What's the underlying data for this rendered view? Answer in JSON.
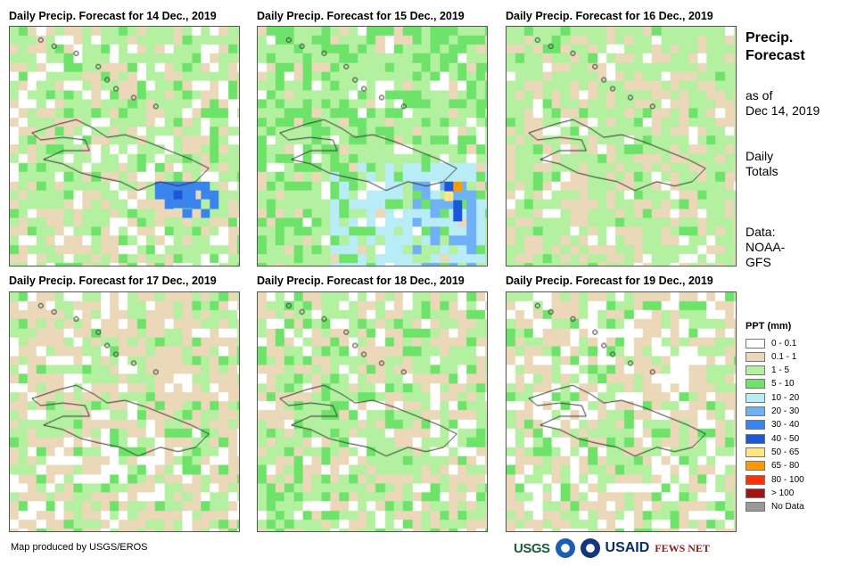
{
  "panels": [
    {
      "title": "Daily Precip. Forecast for 14 Dec., 2019",
      "date": "14 Dec., 2019"
    },
    {
      "title": "Daily Precip. Forecast for 15 Dec., 2019",
      "date": "15 Dec., 2019"
    },
    {
      "title": "Daily Precip. Forecast for 16 Dec., 2019",
      "date": "16 Dec., 2019"
    },
    {
      "title": "Daily Precip. Forecast for 17 Dec., 2019",
      "date": "17 Dec., 2019"
    },
    {
      "title": "Daily Precip. Forecast for 18 Dec., 2019",
      "date": "18 Dec., 2019"
    },
    {
      "title": "Daily Precip. Forecast for 19 Dec., 2019",
      "date": "19 Dec., 2019"
    }
  ],
  "sidebar": {
    "title_line1": "Precip.",
    "title_line2": "Forecast",
    "asof_line1": "as of",
    "asof_line2": "Dec 14, 2019",
    "totals_line1": "Daily",
    "totals_line2": "Totals",
    "data_line1": "Data:",
    "data_line2": "NOAA-",
    "data_line3": "GFS"
  },
  "legend": {
    "title": "PPT (mm)",
    "items": [
      {
        "label": "0 - 0.1",
        "color": "#ffffff"
      },
      {
        "label": "0.1 - 1",
        "color": "#ead8b8"
      },
      {
        "label": "1 - 5",
        "color": "#b3f0a0"
      },
      {
        "label": "5 - 10",
        "color": "#6ee36a"
      },
      {
        "label": "10 - 20",
        "color": "#b8ecf6"
      },
      {
        "label": "20 - 30",
        "color": "#6fb1f4"
      },
      {
        "label": "30 - 40",
        "color": "#3a84ee"
      },
      {
        "label": "40 - 50",
        "color": "#1b58d9"
      },
      {
        "label": "50 - 65",
        "color": "#ffe680"
      },
      {
        "label": "65 - 80",
        "color": "#ff9900"
      },
      {
        "label": "80 - 100",
        "color": "#ff3300"
      },
      {
        "label": "> 100",
        "color": "#a31515"
      },
      {
        "label": "No Data",
        "color": "#999999"
      }
    ]
  },
  "credit": "Map produced by USGS/EROS",
  "logos": {
    "usgs": "USGS",
    "usaid": "USAID",
    "fews": "FEWS NET"
  }
}
